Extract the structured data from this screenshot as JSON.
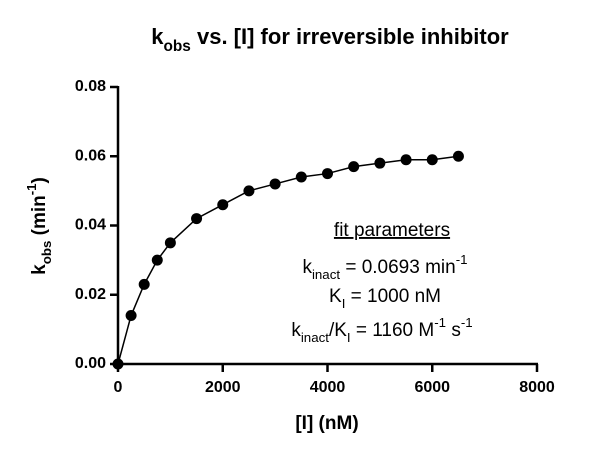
{
  "chart_data": {
    "type": "scatter",
    "title": [
      {
        "text": "k"
      },
      {
        "text": "obs",
        "sub": true
      },
      {
        "text": " vs. [I] for irreversible inhibitor"
      }
    ],
    "x_label": [
      {
        "text": "[I] (nM)"
      }
    ],
    "y_label": [
      {
        "text": "k"
      },
      {
        "text": "obs",
        "sub": true
      },
      {
        "text": " (min"
      },
      {
        "text": "-1",
        "sup": true
      },
      {
        "text": ")"
      }
    ],
    "series": [
      {
        "color": "#000000",
        "marker": true,
        "line": true,
        "x": [
          0,
          250,
          500,
          750,
          1000,
          1500,
          2000,
          2500,
          3000,
          3500,
          4000,
          4500,
          5000,
          5500,
          6000,
          6500
        ],
        "values": [
          0,
          0.014,
          0.023,
          0.03,
          0.035,
          0.042,
          0.046,
          0.05,
          0.052,
          0.054,
          0.055,
          0.057,
          0.058,
          0.059,
          0.059,
          0.06
        ]
      }
    ],
    "xlim": [
      0,
      8000
    ],
    "xticks": [
      0,
      2000,
      4000,
      6000,
      8000
    ],
    "ylim": [
      0,
      0.08
    ],
    "yticks": [
      {
        "value": 0,
        "label": "0.00"
      },
      {
        "value": 0.02,
        "label": "0.02"
      },
      {
        "value": 0.04,
        "label": "0.04"
      },
      {
        "value": 0.06,
        "label": "0.06"
      },
      {
        "value": 0.08,
        "label": "0.08"
      }
    ],
    "grid": false,
    "annotations": [
      {
        "underline": true,
        "parts": [
          {
            "text": "fit parameters"
          }
        ]
      },
      {
        "parts": [
          {
            "text": "k"
          },
          {
            "text": "inact",
            "sub": true
          },
          {
            "text": " = 0.0693 min"
          },
          {
            "text": "-1",
            "sup": true
          }
        ]
      },
      {
        "parts": [
          {
            "text": "K"
          },
          {
            "text": "I",
            "sub": true
          },
          {
            "text": " = 1000 nM"
          }
        ]
      },
      {
        "parts": [
          {
            "text": "k"
          },
          {
            "text": "inact",
            "sub": true
          },
          {
            "text": "/K"
          },
          {
            "text": "I",
            "sub": true
          },
          {
            "text": " = 1160 M"
          },
          {
            "text": "-1",
            "sup": true
          },
          {
            "text": " s"
          },
          {
            "text": "-1",
            "sup": true
          }
        ]
      }
    ]
  }
}
